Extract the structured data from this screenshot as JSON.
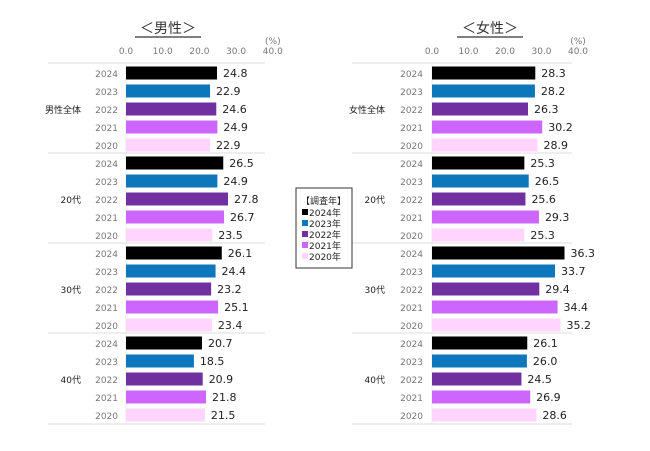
{
  "chart_data": {
    "type": "bar",
    "orientation": "horizontal",
    "unit_label": "(%)",
    "axis_ticks": [
      "0.0",
      "10.0",
      "20.0",
      "30.0",
      "40.0"
    ],
    "xlim": [
      0,
      40
    ],
    "years": [
      "2024",
      "2023",
      "2022",
      "2021",
      "2020"
    ],
    "legend": {
      "title": "【調査年】",
      "entries": [
        "2024年",
        "2023年",
        "2022年",
        "2021年",
        "2020年"
      ],
      "colors": [
        "#000000",
        "#0e76bb",
        "#7030a0",
        "#cc66ff",
        "#ffd5fd"
      ]
    },
    "panels": [
      {
        "title": "＜男性＞",
        "groups": [
          {
            "name": "男性全体",
            "values": [
              24.8,
              22.9,
              24.6,
              24.9,
              22.9
            ]
          },
          {
            "name": "20代",
            "values": [
              26.5,
              24.9,
              27.8,
              26.7,
              23.5
            ]
          },
          {
            "name": "30代",
            "values": [
              26.1,
              24.4,
              23.2,
              25.1,
              23.4
            ]
          },
          {
            "name": "40代",
            "values": [
              20.7,
              18.5,
              20.9,
              21.8,
              21.5
            ]
          }
        ]
      },
      {
        "title": "＜女性＞",
        "groups": [
          {
            "name": "女性全体",
            "values": [
              28.3,
              28.2,
              26.3,
              30.2,
              28.9
            ]
          },
          {
            "name": "20代",
            "values": [
              25.3,
              26.5,
              25.6,
              29.3,
              25.3
            ]
          },
          {
            "name": "30代",
            "values": [
              36.3,
              33.7,
              29.4,
              34.4,
              35.2
            ]
          },
          {
            "name": "40代",
            "values": [
              26.1,
              26.0,
              24.5,
              26.9,
              28.6
            ]
          }
        ]
      }
    ]
  }
}
